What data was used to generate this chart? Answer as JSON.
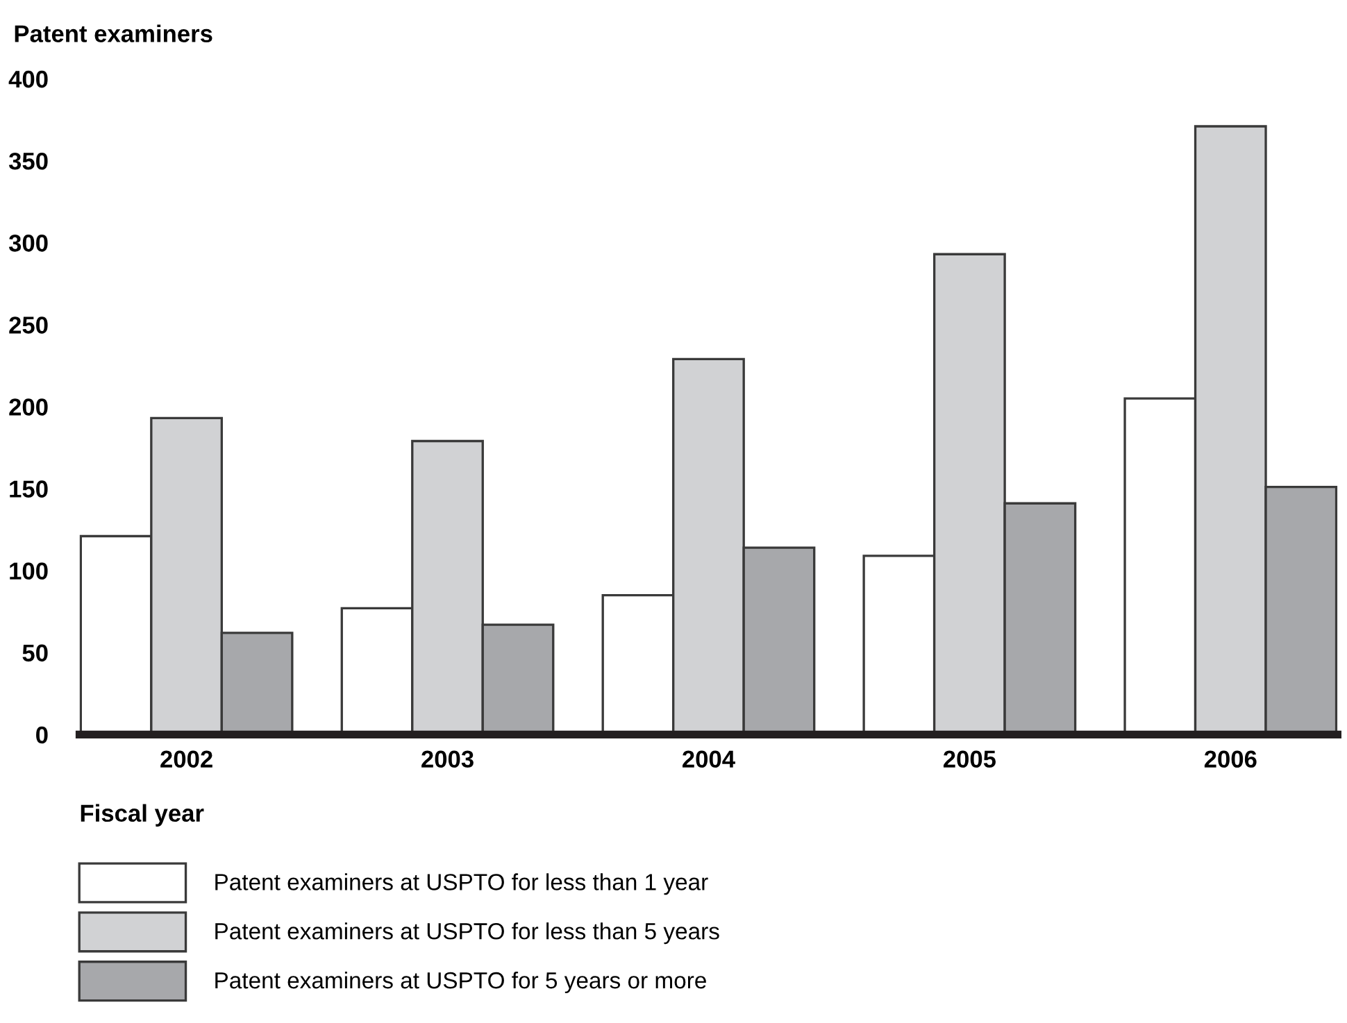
{
  "chart_data": {
    "type": "bar",
    "ylabel": "Patent examiners",
    "xlabel": "Fiscal year",
    "categories": [
      "2002",
      "2003",
      "2004",
      "2005",
      "2006"
    ],
    "series": [
      {
        "name": "Patent examiners at USPTO for less than 1 year",
        "color": "#ffffff",
        "values": [
          121,
          77,
          85,
          109,
          205
        ]
      },
      {
        "name": "Patent examiners at USPTO for less than 5 years",
        "color": "#d1d2d4",
        "values": [
          193,
          179,
          229,
          293,
          371
        ]
      },
      {
        "name": "Patent examiners at USPTO for 5 years or more",
        "color": "#a7a8ab",
        "values": [
          62,
          67,
          114,
          141,
          151
        ]
      }
    ],
    "ylim": [
      0,
      400
    ],
    "yticks": [
      0,
      50,
      100,
      150,
      200,
      250,
      300,
      350,
      400
    ],
    "grid": false,
    "legend": "bottom"
  }
}
